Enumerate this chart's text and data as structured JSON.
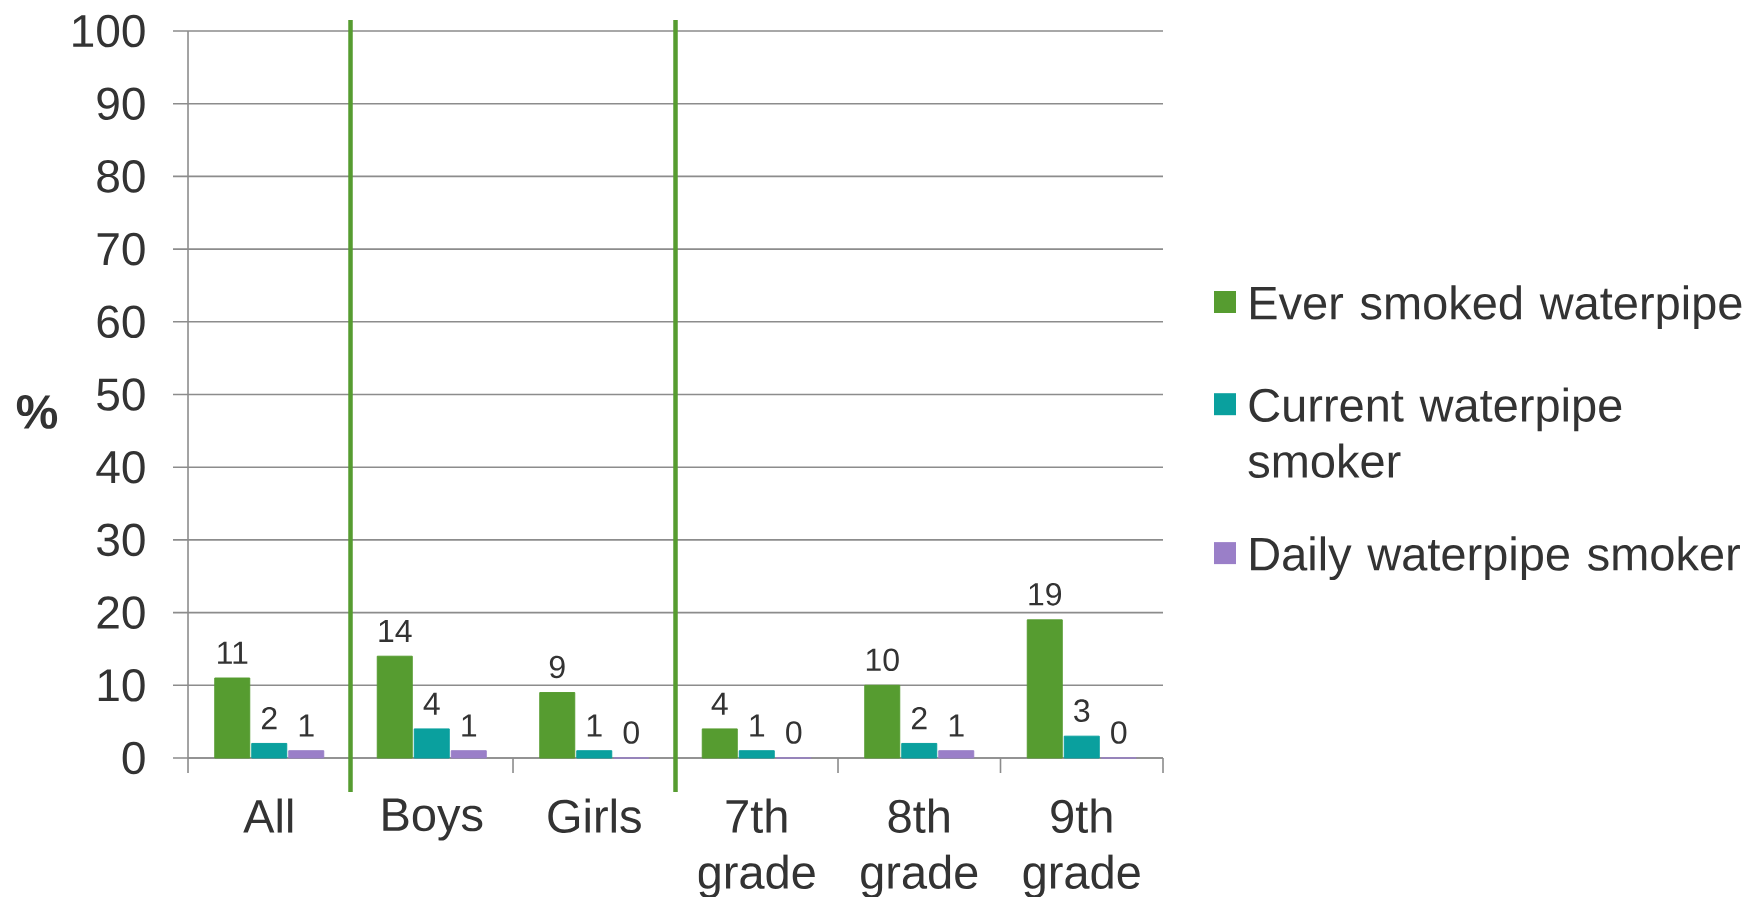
{
  "chart_data": {
    "type": "bar",
    "ylabel": "%",
    "categories": [
      "All",
      "Boys",
      "Girls",
      "7th grade",
      "8th grade",
      "9th grade"
    ],
    "series": [
      {
        "name": "Ever smoked waterpipe",
        "color": "#569c30",
        "values": [
          11,
          14,
          9,
          4,
          10,
          19
        ]
      },
      {
        "name": "Current waterpipe smoker",
        "color": "#0aa09e",
        "values": [
          2,
          4,
          1,
          1,
          2,
          3
        ]
      },
      {
        "name": "Daily waterpipe smoker",
        "color": "#9a7fc8",
        "values": [
          1,
          1,
          0,
          0,
          1,
          0
        ]
      }
    ],
    "ylim": [
      0,
      100
    ],
    "yticks": [
      0,
      10,
      20,
      30,
      40,
      50,
      60,
      70,
      80,
      90,
      100
    ],
    "grid": "y",
    "legend": "right",
    "data_labels": true
  }
}
